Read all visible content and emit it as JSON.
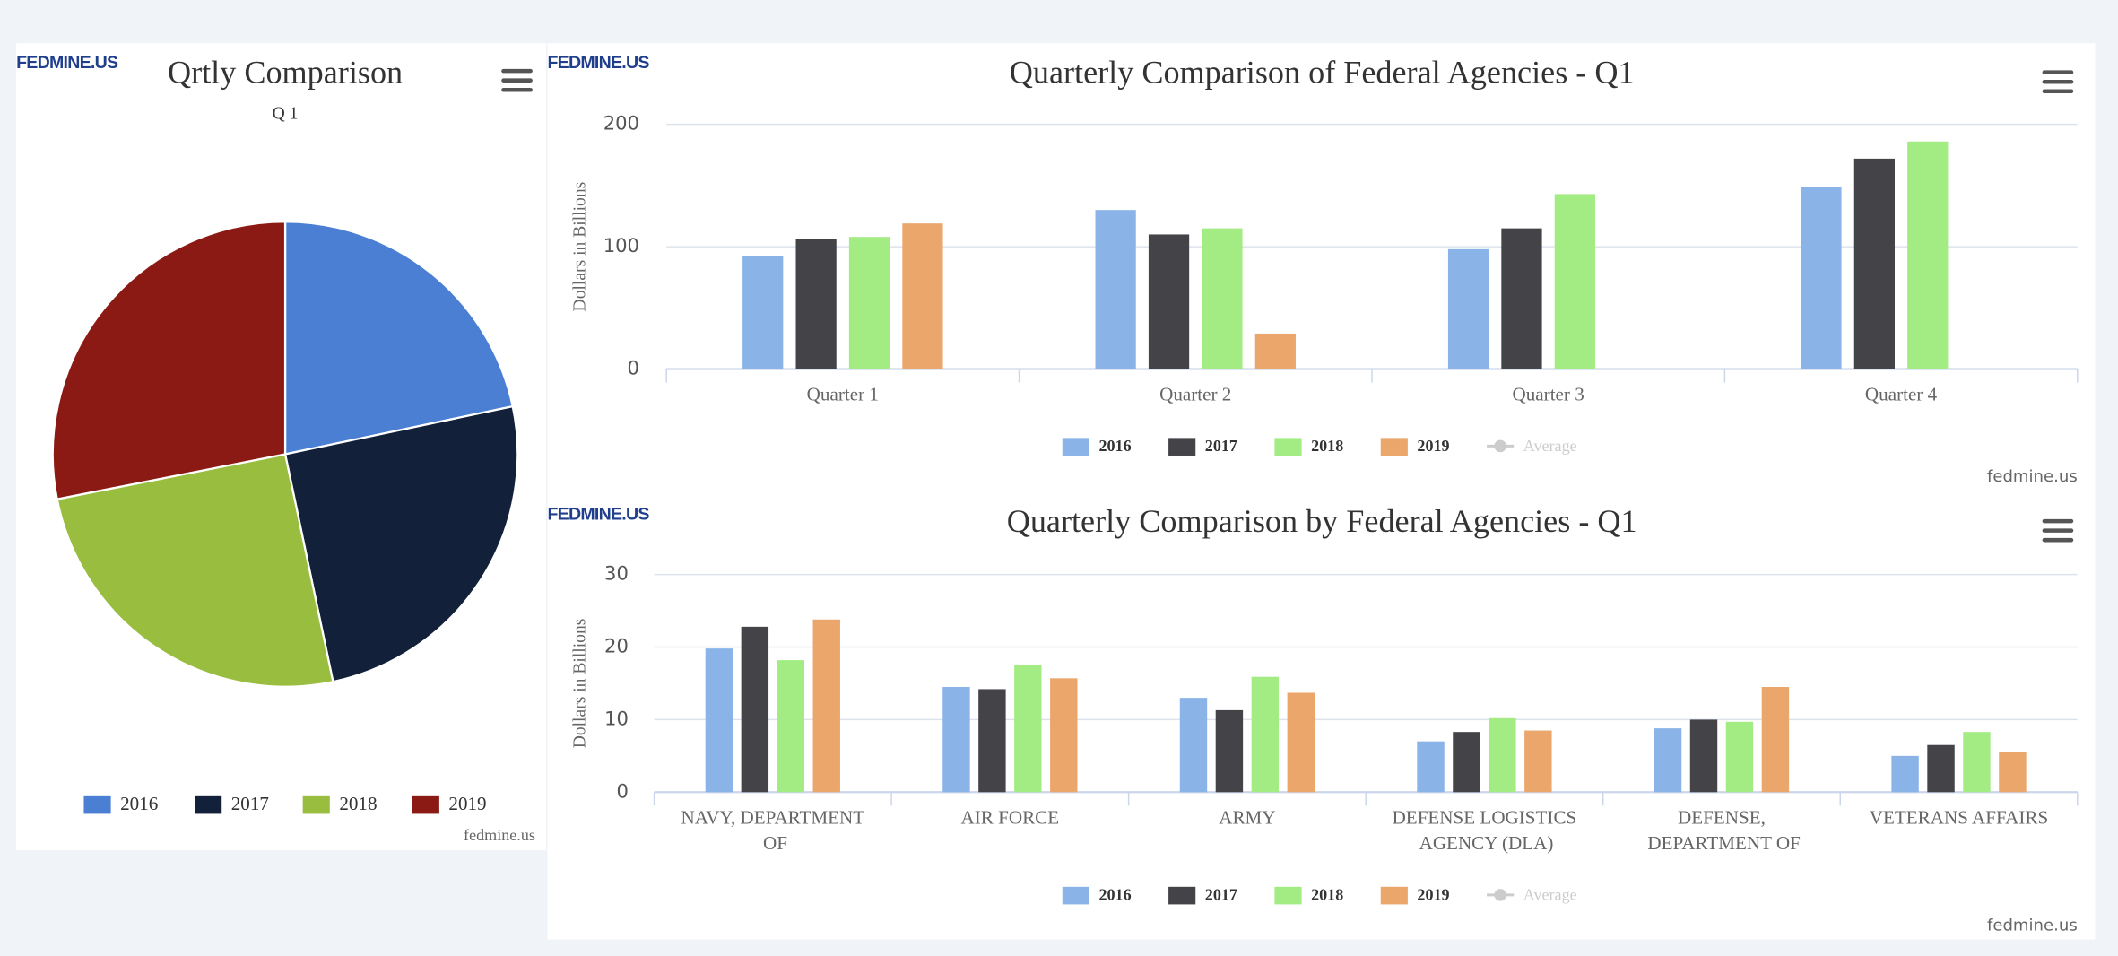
{
  "logo": "FEDMINE.US",
  "chart_data": [
    {
      "type": "pie",
      "title": "Qrtly Comparison",
      "subtitle": "Q 1",
      "categories": [
        "2016",
        "2017",
        "2018",
        "2019"
      ],
      "values": [
        21.7,
        25,
        25.2,
        28.1
      ],
      "colors": [
        "#4a7fd4",
        "#12203a",
        "#98bd3f",
        "#8b1a14"
      ],
      "legend": "bottom",
      "credit": "fedmine.us"
    },
    {
      "type": "bar",
      "title": "Quarterly Comparison of Federal Agencies - Q1",
      "ylabel": "Dollars in Billions",
      "categories": [
        "Quarter 1",
        "Quarter 2",
        "Quarter 3",
        "Quarter 4"
      ],
      "series": [
        {
          "name": "2016",
          "color": "#8ab4e8",
          "values": [
            92,
            130,
            98,
            149
          ]
        },
        {
          "name": "2017",
          "color": "#434348",
          "values": [
            106,
            110,
            115,
            172
          ]
        },
        {
          "name": "2018",
          "color": "#a3ec84",
          "values": [
            108,
            115,
            143,
            186
          ]
        },
        {
          "name": "2019",
          "color": "#eba66c",
          "values": [
            119,
            29,
            null,
            null
          ]
        },
        {
          "name": "Average",
          "color": "#cccccc",
          "values": [
            null,
            null,
            null,
            null
          ],
          "visible": false
        }
      ],
      "ylim": [
        0,
        200
      ],
      "yticks": [
        0,
        100,
        200
      ],
      "grid": true,
      "legend": "bottom",
      "credit": "fedmine.us"
    },
    {
      "type": "bar",
      "title": "Quarterly Comparison by Federal Agencies - Q1",
      "ylabel": "Dollars in Billions",
      "categories": [
        "NAVY, DEPARTMENT OF",
        "AIR FORCE",
        "ARMY",
        "DEFENSE LOGISTICS AGENCY (DLA)",
        "DEFENSE, DEPARTMENT OF",
        "VETERANS AFFAIRS"
      ],
      "series": [
        {
          "name": "2016",
          "color": "#8ab4e8",
          "values": [
            19.8,
            14.5,
            13,
            7,
            8.8,
            5
          ]
        },
        {
          "name": "2017",
          "color": "#434348",
          "values": [
            22.8,
            14.2,
            11.3,
            8.3,
            10,
            6.5
          ]
        },
        {
          "name": "2018",
          "color": "#a3ec84",
          "values": [
            18.2,
            17.6,
            15.9,
            10.2,
            9.7,
            8.3
          ]
        },
        {
          "name": "2019",
          "color": "#eba66c",
          "values": [
            23.8,
            15.7,
            13.7,
            8.5,
            14.5,
            5.6
          ]
        },
        {
          "name": "Average",
          "color": "#cccccc",
          "values": [
            null,
            null,
            null,
            null,
            null,
            null
          ],
          "visible": false
        }
      ],
      "ylim": [
        0,
        30
      ],
      "yticks": [
        0,
        10,
        20,
        30
      ],
      "grid": true,
      "legend": "bottom",
      "credit": "fedmine.us"
    }
  ]
}
